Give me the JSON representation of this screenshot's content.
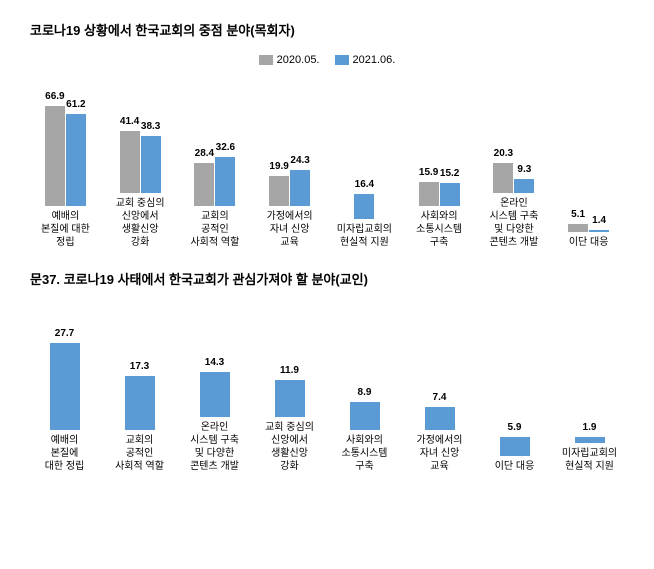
{
  "chart1": {
    "title": "코로나19 상황에서 한국교회의 중점 분야(목회자)",
    "type": "bar",
    "legend": [
      {
        "label": "2020.05.",
        "color": "#a6a6a6"
      },
      {
        "label": "2021.06.",
        "color": "#5b9bd5"
      }
    ],
    "categories": [
      "예배의\n본질에 대한\n정립",
      "교회 중심의\n신앙에서\n생활신앙\n강화",
      "교회의\n공적인\n사회적 역할",
      "가정에서의\n자녀 신앙\n교육",
      "미자립교회의\n현실적 지원",
      "사회와의\n소통시스템\n구축",
      "온라인\n시스템 구축\n및 다양한\n콘텐츠 개발",
      "이단 대응"
    ],
    "series1_values": [
      66.9,
      41.4,
      28.4,
      19.9,
      null,
      15.9,
      20.3,
      5.1
    ],
    "series2_values": [
      61.2,
      38.3,
      32.6,
      24.3,
      16.4,
      15.2,
      9.3,
      1.4
    ],
    "max_value": 80,
    "colors": {
      "series1": "#a6a6a6",
      "series2": "#5b9bd5"
    }
  },
  "chart2": {
    "title": "문37.  코로나19 사태에서 한국교회가 관심가져야 할 분야(교인)",
    "type": "bar",
    "categories": [
      "예배의\n본질에\n대한 정립",
      "교회의\n공적인\n사회적 역할",
      "온라인\n시스템 구축\n및 다양한\n콘텐츠 개발",
      "교회 중심의\n신앙에서\n생활신앙\n강화",
      "사회와의\n소통시스템\n구축",
      "가정에서의\n자녀 신앙\n교육",
      "이단 대응",
      "미자립교회의\n현실적 지원"
    ],
    "values": [
      27.7,
      17.3,
      14.3,
      11.9,
      8.9,
      7.4,
      5.9,
      1.9
    ],
    "max_value": 35,
    "bar_color": "#5b9bd5"
  }
}
